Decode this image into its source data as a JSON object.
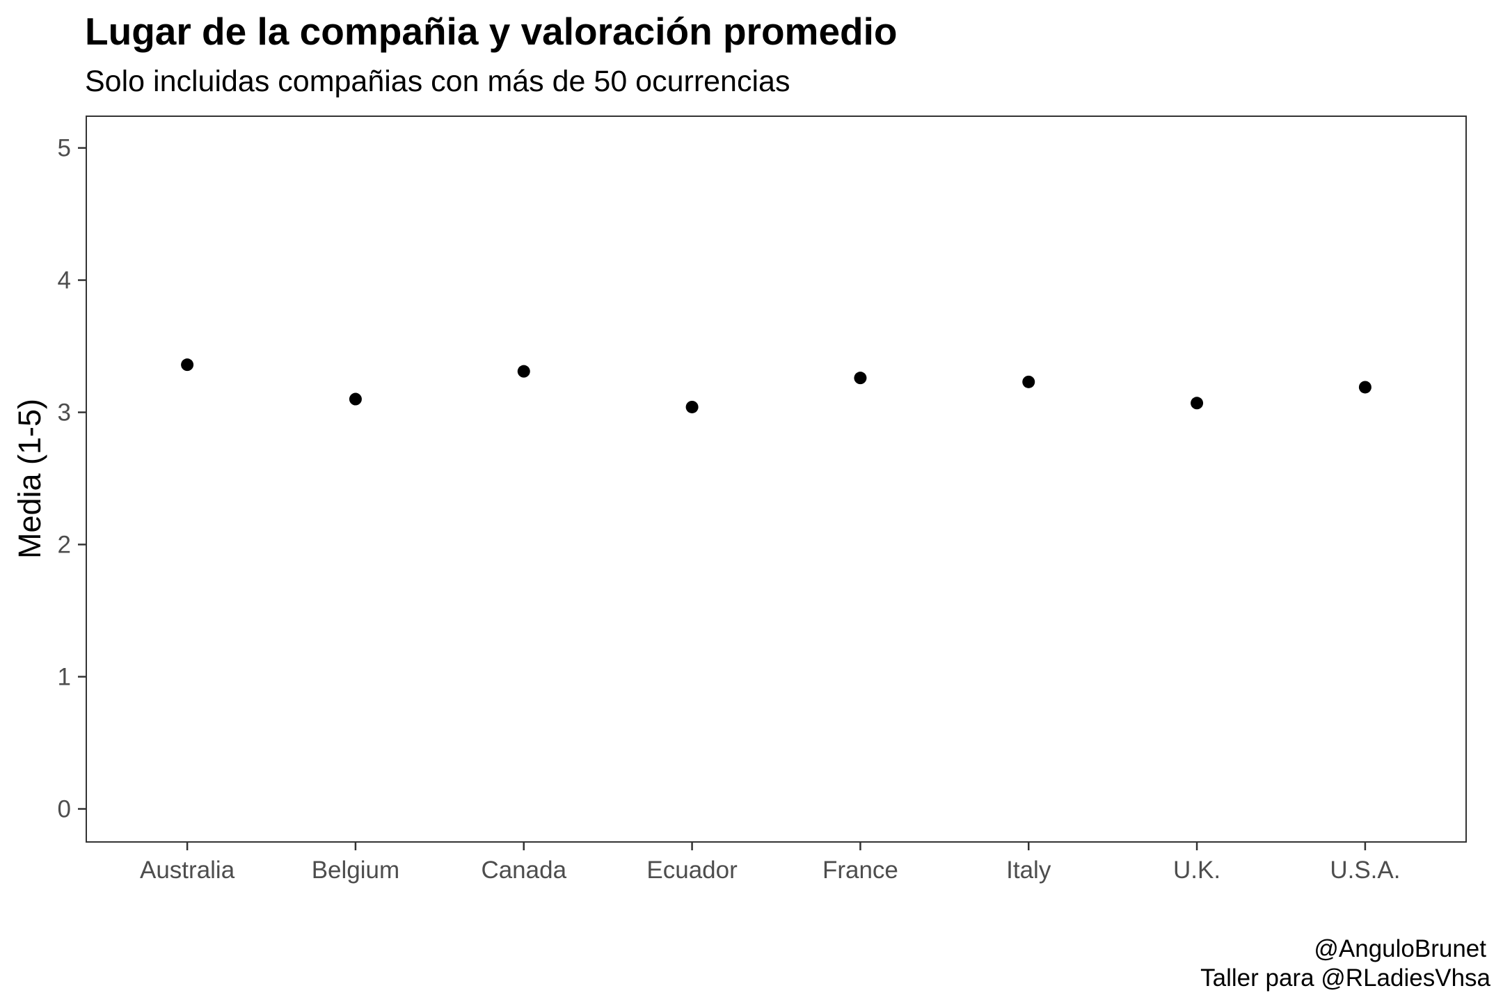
{
  "chart_data": {
    "type": "scatter",
    "title": "Lugar de la compañia y valoración promedio",
    "subtitle": "Solo incluidas compañias con más de 50 ocurrencias",
    "xlabel": "",
    "ylabel": "Media (1-5)",
    "categories": [
      "Australia",
      "Belgium",
      "Canada",
      "Ecuador",
      "France",
      "Italy",
      "U.K.",
      "U.S.A."
    ],
    "values": [
      3.36,
      3.1,
      3.31,
      3.04,
      3.26,
      3.23,
      3.07,
      3.19
    ],
    "ylim": [
      -0.25,
      5.24
    ],
    "yticks": [
      "0",
      "1",
      "2",
      "3",
      "4",
      "5"
    ],
    "grid": false,
    "legend": "none",
    "point_color": "#000000",
    "caption": [
      "@AnguloBrunet",
      "Taller para @RLadiesVhsa"
    ]
  }
}
